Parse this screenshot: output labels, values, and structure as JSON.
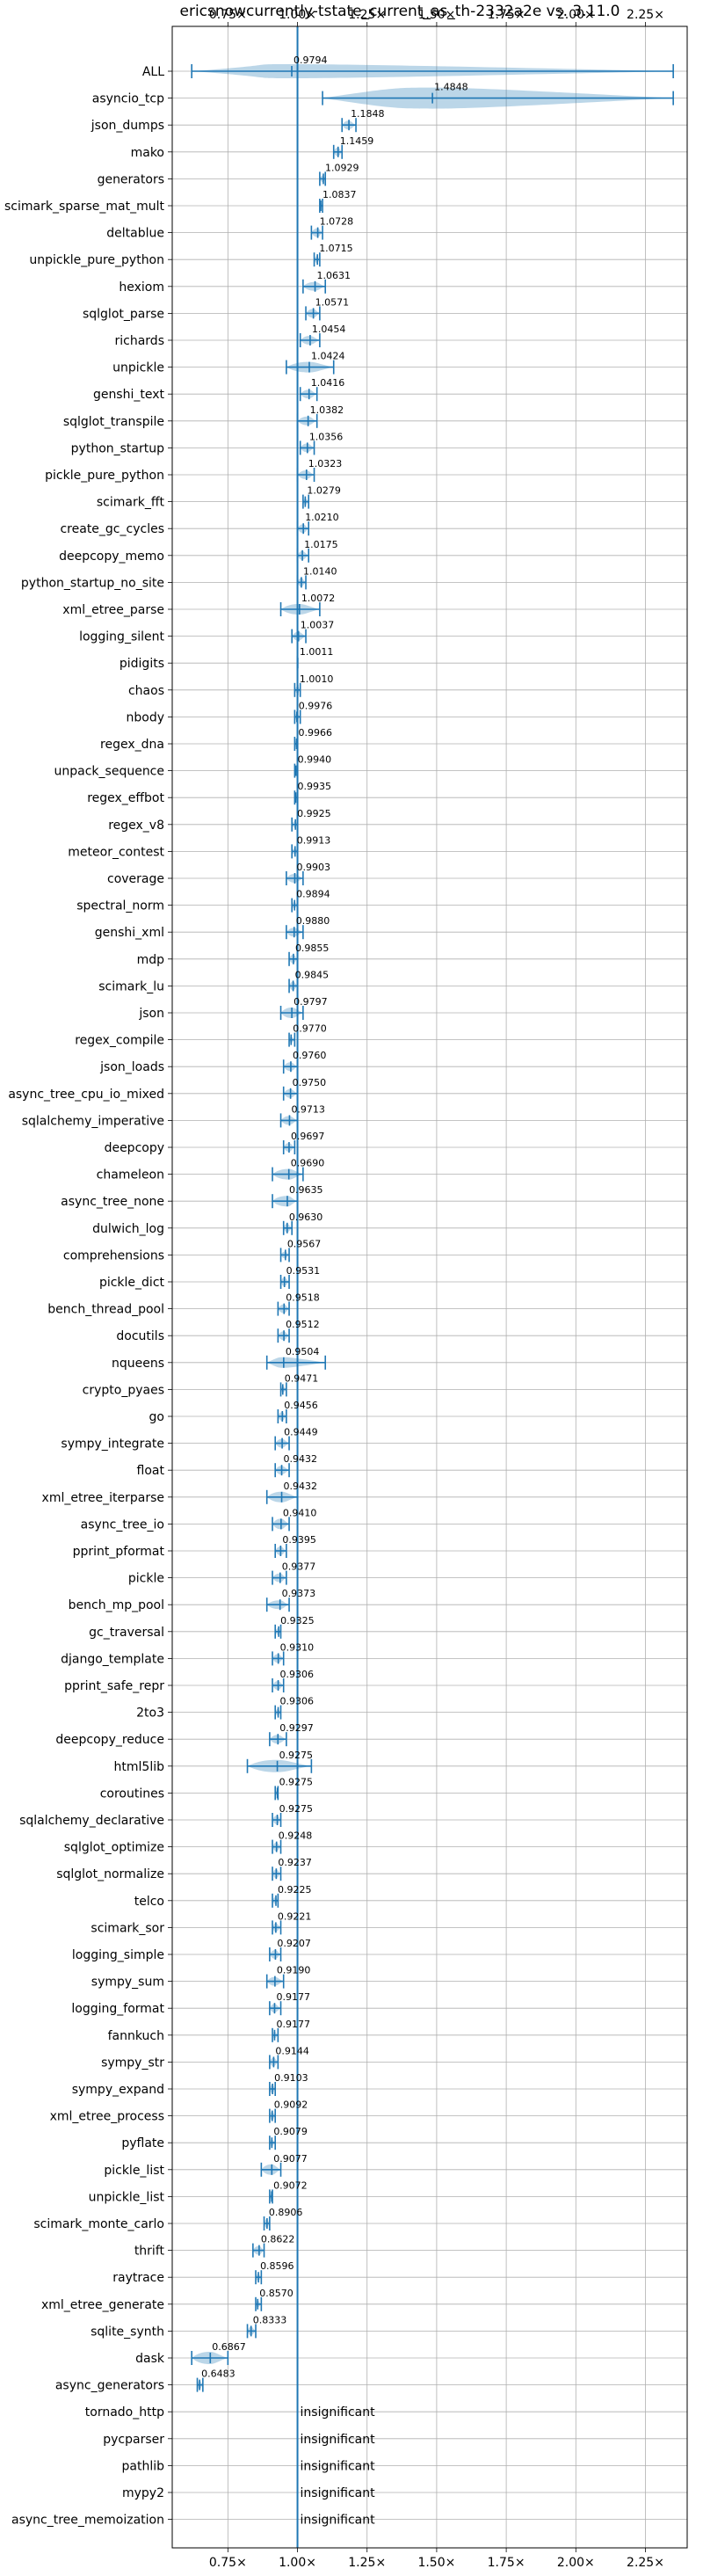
{
  "chart_data": {
    "type": "violin",
    "title": "ericsnowcurrently-tstate_current_as_th-2332a2e vs. 3.11.0",
    "xlabel": "",
    "ylabel": "",
    "xlim": [
      0.55,
      2.4
    ],
    "x_ticks": [
      0.75,
      1.0,
      1.25,
      1.5,
      1.75,
      2.0,
      2.25
    ],
    "x_tick_labels": [
      "0.75×",
      "1.00×",
      "1.25×",
      "1.50×",
      "1.75×",
      "2.00×",
      "2.25×"
    ],
    "reference_line": 1.0,
    "grid": true,
    "series_color": "#1f77b4",
    "benchmarks": [
      {
        "name": "ALL",
        "value": 0.9794,
        "label": "0.9794",
        "lo": 0.62,
        "hi": 2.35,
        "width": 0.6
      },
      {
        "name": "asyncio_tcp",
        "value": 1.4848,
        "label": "1.4848",
        "lo": 1.09,
        "hi": 2.35,
        "width": 1.0
      },
      {
        "name": "json_dumps",
        "value": 1.1848,
        "label": "1.1848",
        "lo": 1.16,
        "hi": 1.21,
        "width": 0.3
      },
      {
        "name": "mako",
        "value": 1.1459,
        "label": "1.1459",
        "lo": 1.13,
        "hi": 1.16,
        "width": 0.3
      },
      {
        "name": "generators",
        "value": 1.0929,
        "label": "1.0929",
        "lo": 1.08,
        "hi": 1.1,
        "width": 0.2
      },
      {
        "name": "scimark_sparse_mat_mult",
        "value": 1.0837,
        "label": "1.0837",
        "lo": 1.08,
        "hi": 1.09,
        "width": 0.2
      },
      {
        "name": "deltablue",
        "value": 1.0728,
        "label": "1.0728",
        "lo": 1.05,
        "hi": 1.09,
        "width": 0.3
      },
      {
        "name": "unpickle_pure_python",
        "value": 1.0715,
        "label": "1.0715",
        "lo": 1.06,
        "hi": 1.08,
        "width": 0.2
      },
      {
        "name": "hexiom",
        "value": 1.0631,
        "label": "1.0631",
        "lo": 1.02,
        "hi": 1.1,
        "width": 0.3
      },
      {
        "name": "sqlglot_parse",
        "value": 1.0571,
        "label": "1.0571",
        "lo": 1.03,
        "hi": 1.08,
        "width": 0.3
      },
      {
        "name": "richards",
        "value": 1.0454,
        "label": "1.0454",
        "lo": 1.01,
        "hi": 1.08,
        "width": 0.3
      },
      {
        "name": "unpickle",
        "value": 1.0424,
        "label": "1.0424",
        "lo": 0.96,
        "hi": 1.13,
        "width": 0.4
      },
      {
        "name": "genshi_text",
        "value": 1.0416,
        "label": "1.0416",
        "lo": 1.01,
        "hi": 1.07,
        "width": 0.3
      },
      {
        "name": "sqlglot_transpile",
        "value": 1.0382,
        "label": "1.0382",
        "lo": 1.0,
        "hi": 1.07,
        "width": 0.3
      },
      {
        "name": "python_startup",
        "value": 1.0356,
        "label": "1.0356",
        "lo": 1.01,
        "hi": 1.06,
        "width": 0.3
      },
      {
        "name": "pickle_pure_python",
        "value": 1.0323,
        "label": "1.0323",
        "lo": 1.0,
        "hi": 1.06,
        "width": 0.3
      },
      {
        "name": "scimark_fft",
        "value": 1.0279,
        "label": "1.0279",
        "lo": 1.02,
        "hi": 1.04,
        "width": 0.2
      },
      {
        "name": "create_gc_cycles",
        "value": 1.021,
        "label": "1.0210",
        "lo": 1.0,
        "hi": 1.04,
        "width": 0.3
      },
      {
        "name": "deepcopy_memo",
        "value": 1.0175,
        "label": "1.0175",
        "lo": 1.0,
        "hi": 1.04,
        "width": 0.3
      },
      {
        "name": "python_startup_no_site",
        "value": 1.014,
        "label": "1.0140",
        "lo": 1.0,
        "hi": 1.03,
        "width": 0.3
      },
      {
        "name": "xml_etree_parse",
        "value": 1.0072,
        "label": "1.0072",
        "lo": 0.94,
        "hi": 1.08,
        "width": 0.4
      },
      {
        "name": "logging_silent",
        "value": 1.0037,
        "label": "1.0037",
        "lo": 0.98,
        "hi": 1.03,
        "width": 0.3
      },
      {
        "name": "pidigits",
        "value": 1.0011,
        "label": "1.0011",
        "lo": 1.0,
        "hi": 1.0,
        "width": 0.1
      },
      {
        "name": "chaos",
        "value": 1.001,
        "label": "1.0010",
        "lo": 0.99,
        "hi": 1.01,
        "width": 0.2
      },
      {
        "name": "nbody",
        "value": 0.9976,
        "label": "0.9976",
        "lo": 0.99,
        "hi": 1.01,
        "width": 0.2
      },
      {
        "name": "regex_dna",
        "value": 0.9966,
        "label": "0.9966",
        "lo": 0.99,
        "hi": 1.0,
        "width": 0.2
      },
      {
        "name": "unpack_sequence",
        "value": 0.994,
        "label": "0.9940",
        "lo": 0.99,
        "hi": 1.0,
        "width": 0.1
      },
      {
        "name": "regex_effbot",
        "value": 0.9935,
        "label": "0.9935",
        "lo": 0.99,
        "hi": 1.0,
        "width": 0.2
      },
      {
        "name": "regex_v8",
        "value": 0.9925,
        "label": "0.9925",
        "lo": 0.98,
        "hi": 1.0,
        "width": 0.2
      },
      {
        "name": "meteor_contest",
        "value": 0.9913,
        "label": "0.9913",
        "lo": 0.98,
        "hi": 1.0,
        "width": 0.2
      },
      {
        "name": "coverage",
        "value": 0.9903,
        "label": "0.9903",
        "lo": 0.96,
        "hi": 1.02,
        "width": 0.3
      },
      {
        "name": "spectral_norm",
        "value": 0.9894,
        "label": "0.9894",
        "lo": 0.98,
        "hi": 1.0,
        "width": 0.2
      },
      {
        "name": "genshi_xml",
        "value": 0.988,
        "label": "0.9880",
        "lo": 0.96,
        "hi": 1.02,
        "width": 0.3
      },
      {
        "name": "mdp",
        "value": 0.9855,
        "label": "0.9855",
        "lo": 0.97,
        "hi": 1.0,
        "width": 0.3
      },
      {
        "name": "scimark_lu",
        "value": 0.9845,
        "label": "0.9845",
        "lo": 0.97,
        "hi": 1.0,
        "width": 0.3
      },
      {
        "name": "json",
        "value": 0.9797,
        "label": "0.9797",
        "lo": 0.94,
        "hi": 1.02,
        "width": 0.4
      },
      {
        "name": "regex_compile",
        "value": 0.977,
        "label": "0.9770",
        "lo": 0.97,
        "hi": 0.99,
        "width": 0.2
      },
      {
        "name": "json_loads",
        "value": 0.976,
        "label": "0.9760",
        "lo": 0.95,
        "hi": 1.0,
        "width": 0.3
      },
      {
        "name": "async_tree_cpu_io_mixed",
        "value": 0.975,
        "label": "0.9750",
        "lo": 0.95,
        "hi": 1.0,
        "width": 0.3
      },
      {
        "name": "sqlalchemy_imperative",
        "value": 0.9713,
        "label": "0.9713",
        "lo": 0.94,
        "hi": 1.0,
        "width": 0.3
      },
      {
        "name": "deepcopy",
        "value": 0.9697,
        "label": "0.9697",
        "lo": 0.95,
        "hi": 0.99,
        "width": 0.3
      },
      {
        "name": "chameleon",
        "value": 0.969,
        "label": "0.9690",
        "lo": 0.91,
        "hi": 1.02,
        "width": 0.4
      },
      {
        "name": "async_tree_none",
        "value": 0.9635,
        "label": "0.9635",
        "lo": 0.91,
        "hi": 1.0,
        "width": 0.4
      },
      {
        "name": "dulwich_log",
        "value": 0.963,
        "label": "0.9630",
        "lo": 0.95,
        "hi": 0.98,
        "width": 0.3
      },
      {
        "name": "comprehensions",
        "value": 0.9567,
        "label": "0.9567",
        "lo": 0.94,
        "hi": 0.97,
        "width": 0.2
      },
      {
        "name": "pickle_dict",
        "value": 0.9531,
        "label": "0.9531",
        "lo": 0.94,
        "hi": 0.97,
        "width": 0.3
      },
      {
        "name": "bench_thread_pool",
        "value": 0.9518,
        "label": "0.9518",
        "lo": 0.93,
        "hi": 0.97,
        "width": 0.3
      },
      {
        "name": "docutils",
        "value": 0.9512,
        "label": "0.9512",
        "lo": 0.93,
        "hi": 0.97,
        "width": 0.3
      },
      {
        "name": "nqueens",
        "value": 0.9504,
        "label": "0.9504",
        "lo": 0.89,
        "hi": 1.1,
        "width": 0.4
      },
      {
        "name": "crypto_pyaes",
        "value": 0.9471,
        "label": "0.9471",
        "lo": 0.94,
        "hi": 0.96,
        "width": 0.2
      },
      {
        "name": "go",
        "value": 0.9456,
        "label": "0.9456",
        "lo": 0.93,
        "hi": 0.96,
        "width": 0.3
      },
      {
        "name": "sympy_integrate",
        "value": 0.9449,
        "label": "0.9449",
        "lo": 0.92,
        "hi": 0.97,
        "width": 0.3
      },
      {
        "name": "float",
        "value": 0.9432,
        "label": "0.9432",
        "lo": 0.92,
        "hi": 0.97,
        "width": 0.3
      },
      {
        "name": "xml_etree_iterparse",
        "value": 0.9432,
        "label": "0.9432",
        "lo": 0.89,
        "hi": 1.0,
        "width": 0.4
      },
      {
        "name": "async_tree_io",
        "value": 0.941,
        "label": "0.9410",
        "lo": 0.91,
        "hi": 0.97,
        "width": 0.4
      },
      {
        "name": "pprint_pformat",
        "value": 0.9395,
        "label": "0.9395",
        "lo": 0.92,
        "hi": 0.96,
        "width": 0.3
      },
      {
        "name": "pickle",
        "value": 0.9377,
        "label": "0.9377",
        "lo": 0.91,
        "hi": 0.96,
        "width": 0.3
      },
      {
        "name": "bench_mp_pool",
        "value": 0.9373,
        "label": "0.9373",
        "lo": 0.89,
        "hi": 0.97,
        "width": 0.3
      },
      {
        "name": "gc_traversal",
        "value": 0.9325,
        "label": "0.9325",
        "lo": 0.92,
        "hi": 0.94,
        "width": 0.2
      },
      {
        "name": "django_template",
        "value": 0.931,
        "label": "0.9310",
        "lo": 0.91,
        "hi": 0.95,
        "width": 0.3
      },
      {
        "name": "pprint_safe_repr",
        "value": 0.9306,
        "label": "0.9306",
        "lo": 0.91,
        "hi": 0.95,
        "width": 0.3
      },
      {
        "name": "2to3",
        "value": 0.9306,
        "label": "0.9306",
        "lo": 0.92,
        "hi": 0.94,
        "width": 0.2
      },
      {
        "name": "deepcopy_reduce",
        "value": 0.9297,
        "label": "0.9297",
        "lo": 0.9,
        "hi": 0.96,
        "width": 0.3
      },
      {
        "name": "html5lib",
        "value": 0.9275,
        "label": "0.9275",
        "lo": 0.82,
        "hi": 1.05,
        "width": 0.5
      },
      {
        "name": "coroutines",
        "value": 0.9275,
        "label": "0.9275",
        "lo": 0.92,
        "hi": 0.93,
        "width": 0.1
      },
      {
        "name": "sqlalchemy_declarative",
        "value": 0.9275,
        "label": "0.9275",
        "lo": 0.91,
        "hi": 0.94,
        "width": 0.3
      },
      {
        "name": "sqlglot_optimize",
        "value": 0.9248,
        "label": "0.9248",
        "lo": 0.91,
        "hi": 0.94,
        "width": 0.3
      },
      {
        "name": "sqlglot_normalize",
        "value": 0.9237,
        "label": "0.9237",
        "lo": 0.91,
        "hi": 0.94,
        "width": 0.3
      },
      {
        "name": "telco",
        "value": 0.9225,
        "label": "0.9225",
        "lo": 0.91,
        "hi": 0.93,
        "width": 0.2
      },
      {
        "name": "scimark_sor",
        "value": 0.9221,
        "label": "0.9221",
        "lo": 0.91,
        "hi": 0.94,
        "width": 0.3
      },
      {
        "name": "logging_simple",
        "value": 0.9207,
        "label": "0.9207",
        "lo": 0.9,
        "hi": 0.94,
        "width": 0.3
      },
      {
        "name": "sympy_sum",
        "value": 0.919,
        "label": "0.9190",
        "lo": 0.89,
        "hi": 0.95,
        "width": 0.3
      },
      {
        "name": "logging_format",
        "value": 0.9177,
        "label": "0.9177",
        "lo": 0.9,
        "hi": 0.94,
        "width": 0.3
      },
      {
        "name": "fannkuch",
        "value": 0.9177,
        "label": "0.9177",
        "lo": 0.91,
        "hi": 0.93,
        "width": 0.2
      },
      {
        "name": "sympy_str",
        "value": 0.9144,
        "label": "0.9144",
        "lo": 0.9,
        "hi": 0.93,
        "width": 0.3
      },
      {
        "name": "sympy_expand",
        "value": 0.9103,
        "label": "0.9103",
        "lo": 0.9,
        "hi": 0.92,
        "width": 0.3
      },
      {
        "name": "xml_etree_process",
        "value": 0.9092,
        "label": "0.9092",
        "lo": 0.9,
        "hi": 0.92,
        "width": 0.3
      },
      {
        "name": "pyflate",
        "value": 0.9079,
        "label": "0.9079",
        "lo": 0.9,
        "hi": 0.92,
        "width": 0.2
      },
      {
        "name": "pickle_list",
        "value": 0.9077,
        "label": "0.9077",
        "lo": 0.87,
        "hi": 0.94,
        "width": 0.4
      },
      {
        "name": "unpickle_list",
        "value": 0.9072,
        "label": "0.9072",
        "lo": 0.9,
        "hi": 0.91,
        "width": 0.1
      },
      {
        "name": "scimark_monte_carlo",
        "value": 0.8906,
        "label": "0.8906",
        "lo": 0.88,
        "hi": 0.9,
        "width": 0.3
      },
      {
        "name": "thrift",
        "value": 0.8622,
        "label": "0.8622",
        "lo": 0.84,
        "hi": 0.88,
        "width": 0.3
      },
      {
        "name": "raytrace",
        "value": 0.8596,
        "label": "0.8596",
        "lo": 0.85,
        "hi": 0.87,
        "width": 0.2
      },
      {
        "name": "xml_etree_generate",
        "value": 0.857,
        "label": "0.8570",
        "lo": 0.85,
        "hi": 0.87,
        "width": 0.2
      },
      {
        "name": "sqlite_synth",
        "value": 0.8333,
        "label": "0.8333",
        "lo": 0.82,
        "hi": 0.85,
        "width": 0.3
      },
      {
        "name": "dask",
        "value": 0.6867,
        "label": "0.6867",
        "lo": 0.62,
        "hi": 0.75,
        "width": 0.5
      },
      {
        "name": "async_generators",
        "value": 0.6483,
        "label": "0.6483",
        "lo": 0.64,
        "hi": 0.66,
        "width": 0.3
      },
      {
        "name": "tornado_http",
        "value": null,
        "label": "insignificant"
      },
      {
        "name": "pycparser",
        "value": null,
        "label": "insignificant"
      },
      {
        "name": "pathlib",
        "value": null,
        "label": "insignificant"
      },
      {
        "name": "mypy2",
        "value": null,
        "label": "insignificant"
      },
      {
        "name": "async_tree_memoization",
        "value": null,
        "label": "insignificant"
      }
    ]
  }
}
